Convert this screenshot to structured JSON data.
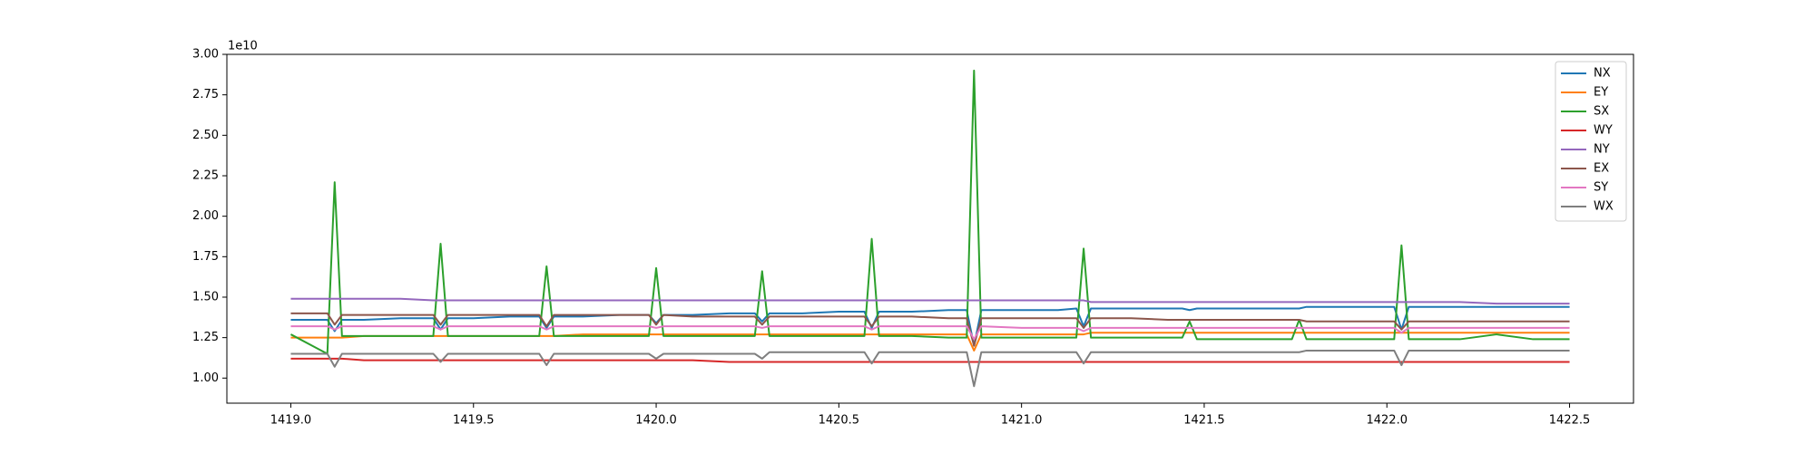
{
  "chart_data": {
    "type": "line",
    "y_offset_label": "1e10",
    "x": [
      1419.0,
      1419.1,
      1419.12,
      1419.14,
      1419.2,
      1419.3,
      1419.39,
      1419.41,
      1419.43,
      1419.5,
      1419.6,
      1419.68,
      1419.7,
      1419.72,
      1419.8,
      1419.9,
      1419.98,
      1420.0,
      1420.02,
      1420.1,
      1420.2,
      1420.27,
      1420.29,
      1420.31,
      1420.4,
      1420.5,
      1420.57,
      1420.59,
      1420.61,
      1420.7,
      1420.8,
      1420.85,
      1420.87,
      1420.89,
      1421.0,
      1421.1,
      1421.15,
      1421.17,
      1421.19,
      1421.3,
      1421.4,
      1421.44,
      1421.46,
      1421.48,
      1421.6,
      1421.7,
      1421.74,
      1421.76,
      1421.78,
      1421.9,
      1422.02,
      1422.04,
      1422.06,
      1422.2,
      1422.3,
      1422.4,
      1422.5
    ],
    "series": [
      {
        "name": "NX",
        "color": "#1f77b4",
        "values": [
          1.36,
          1.36,
          1.29,
          1.36,
          1.36,
          1.37,
          1.37,
          1.3,
          1.37,
          1.37,
          1.38,
          1.38,
          1.31,
          1.38,
          1.38,
          1.39,
          1.39,
          1.34,
          1.39,
          1.39,
          1.4,
          1.4,
          1.35,
          1.4,
          1.4,
          1.41,
          1.41,
          1.31,
          1.41,
          1.41,
          1.42,
          1.42,
          1.2,
          1.42,
          1.42,
          1.42,
          1.43,
          1.32,
          1.43,
          1.43,
          1.43,
          1.43,
          1.42,
          1.43,
          1.43,
          1.43,
          1.43,
          1.43,
          1.44,
          1.44,
          1.44,
          1.3,
          1.44,
          1.44,
          1.44,
          1.44,
          1.44
        ]
      },
      {
        "name": "EY",
        "color": "#ff7f0e",
        "values": [
          1.25,
          1.25,
          1.25,
          1.25,
          1.26,
          1.26,
          1.26,
          1.26,
          1.26,
          1.26,
          1.26,
          1.26,
          1.26,
          1.26,
          1.27,
          1.27,
          1.27,
          1.27,
          1.27,
          1.27,
          1.27,
          1.27,
          1.27,
          1.27,
          1.27,
          1.27,
          1.27,
          1.27,
          1.27,
          1.27,
          1.27,
          1.27,
          1.17,
          1.27,
          1.27,
          1.27,
          1.27,
          1.27,
          1.28,
          1.28,
          1.28,
          1.28,
          1.28,
          1.28,
          1.28,
          1.28,
          1.28,
          1.28,
          1.28,
          1.28,
          1.28,
          1.28,
          1.28,
          1.28,
          1.28,
          1.28,
          1.28
        ]
      },
      {
        "name": "SX",
        "color": "#2ca02c",
        "values": [
          1.27,
          1.15,
          2.21,
          1.26,
          1.26,
          1.26,
          1.26,
          1.83,
          1.26,
          1.26,
          1.26,
          1.26,
          1.69,
          1.26,
          1.26,
          1.26,
          1.26,
          1.68,
          1.26,
          1.26,
          1.26,
          1.26,
          1.66,
          1.26,
          1.26,
          1.26,
          1.26,
          1.86,
          1.26,
          1.26,
          1.25,
          1.25,
          2.9,
          1.25,
          1.25,
          1.25,
          1.25,
          1.8,
          1.25,
          1.25,
          1.25,
          1.25,
          1.35,
          1.24,
          1.24,
          1.24,
          1.24,
          1.36,
          1.24,
          1.24,
          1.24,
          1.82,
          1.24,
          1.24,
          1.27,
          1.24,
          1.24
        ]
      },
      {
        "name": "WY",
        "color": "#d62728",
        "values": [
          1.12,
          1.12,
          1.12,
          1.12,
          1.11,
          1.11,
          1.11,
          1.11,
          1.11,
          1.11,
          1.11,
          1.11,
          1.11,
          1.11,
          1.11,
          1.11,
          1.11,
          1.11,
          1.11,
          1.11,
          1.1,
          1.1,
          1.1,
          1.1,
          1.1,
          1.1,
          1.1,
          1.1,
          1.1,
          1.1,
          1.1,
          1.1,
          1.1,
          1.1,
          1.1,
          1.1,
          1.1,
          1.1,
          1.1,
          1.1,
          1.1,
          1.1,
          1.1,
          1.1,
          1.1,
          1.1,
          1.1,
          1.1,
          1.1,
          1.1,
          1.1,
          1.1,
          1.1,
          1.1,
          1.1,
          1.1,
          1.1
        ]
      },
      {
        "name": "NY",
        "color": "#9467bd",
        "values": [
          1.49,
          1.49,
          1.49,
          1.49,
          1.49,
          1.49,
          1.48,
          1.48,
          1.48,
          1.48,
          1.48,
          1.48,
          1.48,
          1.48,
          1.48,
          1.48,
          1.48,
          1.48,
          1.48,
          1.48,
          1.48,
          1.48,
          1.48,
          1.48,
          1.48,
          1.48,
          1.48,
          1.48,
          1.48,
          1.48,
          1.48,
          1.48,
          1.48,
          1.48,
          1.48,
          1.48,
          1.48,
          1.48,
          1.47,
          1.47,
          1.47,
          1.47,
          1.47,
          1.47,
          1.47,
          1.47,
          1.47,
          1.47,
          1.47,
          1.47,
          1.47,
          1.47,
          1.47,
          1.47,
          1.46,
          1.46,
          1.46
        ]
      },
      {
        "name": "EX",
        "color": "#8c564b",
        "values": [
          1.4,
          1.4,
          1.33,
          1.39,
          1.39,
          1.39,
          1.39,
          1.33,
          1.39,
          1.39,
          1.39,
          1.39,
          1.32,
          1.39,
          1.39,
          1.39,
          1.39,
          1.33,
          1.39,
          1.38,
          1.38,
          1.38,
          1.33,
          1.38,
          1.38,
          1.38,
          1.38,
          1.32,
          1.38,
          1.38,
          1.37,
          1.37,
          1.2,
          1.37,
          1.37,
          1.37,
          1.37,
          1.31,
          1.37,
          1.37,
          1.36,
          1.36,
          1.36,
          1.36,
          1.36,
          1.36,
          1.36,
          1.36,
          1.35,
          1.35,
          1.35,
          1.3,
          1.35,
          1.35,
          1.35,
          1.35,
          1.35
        ]
      },
      {
        "name": "SY",
        "color": "#e377c2",
        "values": [
          1.32,
          1.32,
          1.3,
          1.32,
          1.32,
          1.32,
          1.32,
          1.3,
          1.32,
          1.32,
          1.32,
          1.32,
          1.3,
          1.32,
          1.32,
          1.32,
          1.32,
          1.31,
          1.32,
          1.32,
          1.32,
          1.32,
          1.31,
          1.32,
          1.32,
          1.32,
          1.32,
          1.3,
          1.32,
          1.32,
          1.32,
          1.32,
          1.24,
          1.32,
          1.31,
          1.31,
          1.31,
          1.29,
          1.31,
          1.31,
          1.31,
          1.31,
          1.31,
          1.31,
          1.31,
          1.31,
          1.31,
          1.31,
          1.31,
          1.31,
          1.31,
          1.28,
          1.31,
          1.31,
          1.31,
          1.31,
          1.31
        ]
      },
      {
        "name": "WX",
        "color": "#7f7f7f",
        "values": [
          1.15,
          1.15,
          1.07,
          1.15,
          1.15,
          1.15,
          1.15,
          1.1,
          1.15,
          1.15,
          1.15,
          1.15,
          1.08,
          1.15,
          1.15,
          1.15,
          1.15,
          1.12,
          1.15,
          1.15,
          1.15,
          1.15,
          1.12,
          1.16,
          1.16,
          1.16,
          1.16,
          1.09,
          1.16,
          1.16,
          1.16,
          1.16,
          0.95,
          1.16,
          1.16,
          1.16,
          1.16,
          1.09,
          1.16,
          1.16,
          1.16,
          1.16,
          1.16,
          1.16,
          1.16,
          1.16,
          1.16,
          1.16,
          1.17,
          1.17,
          1.17,
          1.08,
          1.17,
          1.17,
          1.17,
          1.17,
          1.17
        ]
      }
    ],
    "xlim": [
      1418.825,
      1422.675
    ],
    "ylim": [
      0.845,
      3.0
    ],
    "xticks": [
      {
        "value": 1419,
        "label": "1419.0"
      },
      {
        "value": 1419.5,
        "label": "1419.5"
      },
      {
        "value": 1420,
        "label": "1420.0"
      },
      {
        "value": 1420.5,
        "label": "1420.5"
      },
      {
        "value": 1421,
        "label": "1421.0"
      },
      {
        "value": 1421.5,
        "label": "1421.5"
      },
      {
        "value": 1422,
        "label": "1422.0"
      },
      {
        "value": 1422.5,
        "label": "1422.5"
      }
    ],
    "yticks": [
      {
        "value": 1,
        "label": "1.00"
      },
      {
        "value": 1.25,
        "label": "1.25"
      },
      {
        "value": 1.5,
        "label": "1.50"
      },
      {
        "value": 1.75,
        "label": "1.75"
      },
      {
        "value": 2,
        "label": "2.00"
      },
      {
        "value": 2.25,
        "label": "2.25"
      },
      {
        "value": 2.5,
        "label": "2.50"
      },
      {
        "value": 2.75,
        "label": "2.75"
      },
      {
        "value": 3,
        "label": "3.00"
      }
    ],
    "grid": false,
    "legend": "upper-right"
  }
}
